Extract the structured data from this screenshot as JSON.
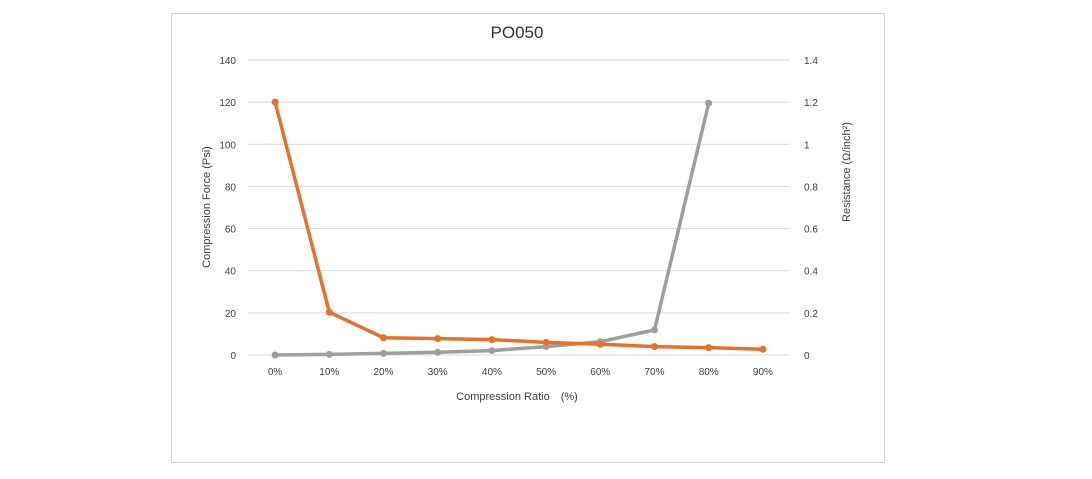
{
  "chart_data": {
    "type": "line",
    "title": "PO050",
    "xlabel": "Compression Ratio　(%)",
    "ylabel": "Compression Force (Psi)",
    "y2label": "Resistance  (Ω/inch²)",
    "categories": [
      "0%",
      "10%",
      "20%",
      "30%",
      "40%",
      "50%",
      "60%",
      "70%",
      "80%",
      "90%"
    ],
    "ylim": [
      0,
      140
    ],
    "yticks": [
      0,
      20,
      40,
      60,
      80,
      100,
      120,
      140
    ],
    "y2lim": [
      0,
      1.4
    ],
    "y2ticks": [
      "0",
      "0.2",
      "0.4",
      "0.6",
      "0.8",
      "1",
      "1.2",
      "1.4"
    ],
    "grid": true,
    "series": [
      {
        "axis": "right",
        "color": "#E8702A",
        "values": [
          1.2,
          0.203,
          0.082,
          0.078,
          0.073,
          0.06,
          0.051,
          0.04,
          0.035,
          0.027
        ]
      },
      {
        "axis": "left",
        "color": "#9E9E9E",
        "values": [
          0,
          0.3,
          0.8,
          1.3,
          2.1,
          4.0,
          6.3,
          11.9,
          119.5,
          null
        ]
      }
    ]
  }
}
